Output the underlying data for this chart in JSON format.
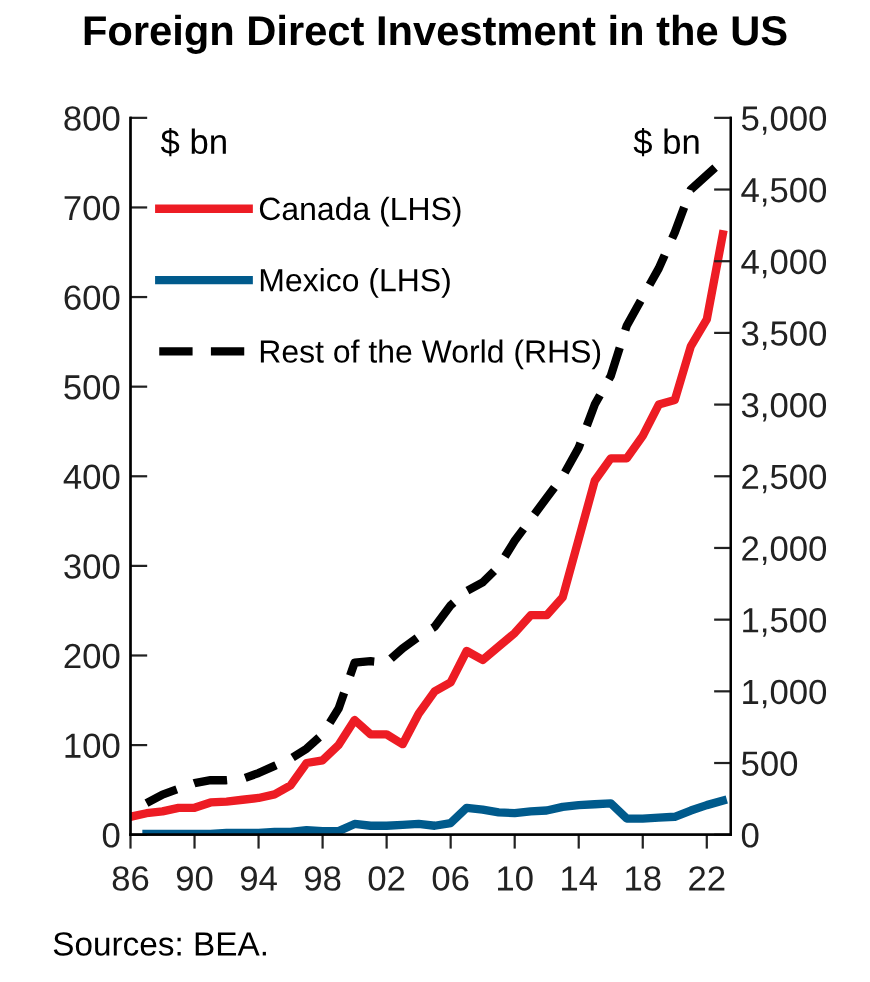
{
  "chart_data": {
    "type": "line",
    "title": "Foreign Direct Investment in the US",
    "ylabel": "$ bn",
    "y2label": "$ bn",
    "x": [
      1986,
      1987,
      1988,
      1989,
      1990,
      1991,
      1992,
      1993,
      1994,
      1995,
      1996,
      1997,
      1998,
      1999,
      2000,
      2001,
      2002,
      2003,
      2004,
      2005,
      2006,
      2007,
      2008,
      2009,
      2010,
      2011,
      2012,
      2013,
      2014,
      2015,
      2016,
      2017,
      2018,
      2019,
      2020,
      2021,
      2022,
      2023
    ],
    "series": [
      {
        "name": "Canada (LHS)",
        "color": "#ed1c24",
        "line_style": "solid",
        "values": [
          20,
          24,
          26,
          30,
          30,
          36,
          37,
          39,
          41,
          45,
          55,
          80,
          83,
          100,
          128,
          112,
          112,
          101,
          135,
          160,
          170,
          205,
          195,
          210,
          225,
          245,
          245,
          265,
          330,
          395,
          420,
          420,
          445,
          480,
          485,
          545,
          575,
          670
        ]
      },
      {
        "name": "Mexico (LHS)",
        "color": "#005a8c",
        "line_style": "solid",
        "values": [
          null,
          1,
          1,
          1,
          1,
          1,
          2,
          2,
          2,
          3,
          3,
          5,
          4,
          4,
          12,
          10,
          10,
          11,
          12,
          10,
          13,
          30,
          28,
          25,
          24,
          26,
          27,
          31,
          33,
          34,
          35,
          18,
          18,
          19,
          20,
          27,
          33,
          38
        ]
      },
      {
        "name": "Rest of the World (RHS)",
        "color": "#000000",
        "line_style": "dashed",
        "axis": "y2",
        "values": [
          null,
          220,
          280,
          320,
          360,
          380,
          380,
          390,
          430,
          480,
          530,
          600,
          700,
          880,
          1200,
          1210,
          1200,
          1300,
          1380,
          1450,
          1600,
          1700,
          1760,
          1870,
          2050,
          2200,
          2350,
          2500,
          2700,
          3000,
          3200,
          3550,
          3750,
          3950,
          4200,
          4500,
          4600,
          4700
        ]
      }
    ],
    "xlim": [
      1986,
      2023.5
    ],
    "xticks": [
      {
        "value": 1986,
        "label": "86"
      },
      {
        "value": 1990,
        "label": "90"
      },
      {
        "value": 1994,
        "label": "94"
      },
      {
        "value": 1998,
        "label": "98"
      },
      {
        "value": 2002,
        "label": "02"
      },
      {
        "value": 2006,
        "label": "06"
      },
      {
        "value": 2010,
        "label": "10"
      },
      {
        "value": 2014,
        "label": "14"
      },
      {
        "value": 2018,
        "label": "18"
      },
      {
        "value": 2022,
        "label": "22"
      }
    ],
    "ylim": [
      0,
      800
    ],
    "yticks": [
      0,
      100,
      200,
      300,
      400,
      500,
      600,
      700,
      800
    ],
    "y2lim": [
      0,
      5000
    ],
    "y2ticks": [
      0,
      {
        "value": 500,
        "label": "500"
      },
      {
        "value": 1000,
        "label": "1,000"
      },
      {
        "value": 1500,
        "label": "1,500"
      },
      {
        "value": 2000,
        "label": "2,000"
      },
      {
        "value": 2500,
        "label": "2,500"
      },
      {
        "value": 3000,
        "label": "3,000"
      },
      {
        "value": 3500,
        "label": "3,500"
      },
      {
        "value": 4000,
        "label": "4,000"
      },
      {
        "value": 4500,
        "label": "4,500"
      },
      {
        "value": 5000,
        "label": "5,000"
      }
    ],
    "grid": false,
    "legend": "top left",
    "marker": "none",
    "annotations": [
      "Sources: BEA."
    ]
  }
}
